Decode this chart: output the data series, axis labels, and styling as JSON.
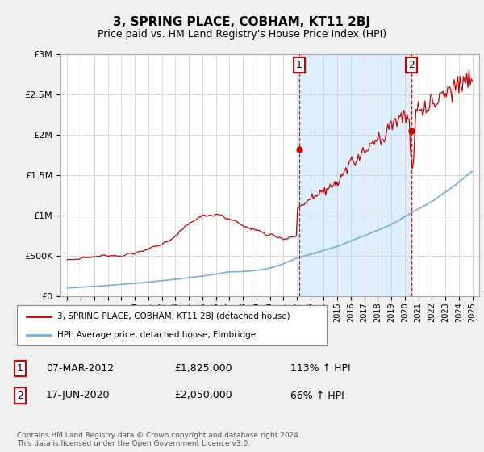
{
  "title": "3, SPRING PLACE, COBHAM, KT11 2BJ",
  "subtitle": "Price paid vs. HM Land Registry's House Price Index (HPI)",
  "ylim": [
    0,
    3000000
  ],
  "yticks": [
    0,
    500000,
    1000000,
    1500000,
    2000000,
    2500000,
    3000000
  ],
  "ytick_labels": [
    "£0",
    "£500K",
    "£1M",
    "£1.5M",
    "£2M",
    "£2.5M",
    "£3M"
  ],
  "legend_line1": "3, SPRING PLACE, COBHAM, KT11 2BJ (detached house)",
  "legend_line2": "HPI: Average price, detached house, Elmbridge",
  "transaction1_date": "07-MAR-2012",
  "transaction1_price": "£1,825,000",
  "transaction1_hpi": "113% ↑ HPI",
  "transaction2_date": "17-JUN-2020",
  "transaction2_price": "£2,050,000",
  "transaction2_hpi": "66% ↑ HPI",
  "footnote": "Contains HM Land Registry data © Crown copyright and database right 2024.\nThis data is licensed under the Open Government Licence v3.0.",
  "line_color_red": "#cc0000",
  "line_color_blue": "#7aadd4",
  "shade_color": "#ddeeff",
  "background_color": "#f0f0f0",
  "plot_bg_color": "#ffffff",
  "vline_color": "#cc0000",
  "transaction1_x": 2012.17,
  "transaction2_x": 2020.46,
  "transaction1_y": 1825000,
  "transaction2_y": 2050000,
  "xlim_left": 1994.5,
  "xlim_right": 2025.5
}
